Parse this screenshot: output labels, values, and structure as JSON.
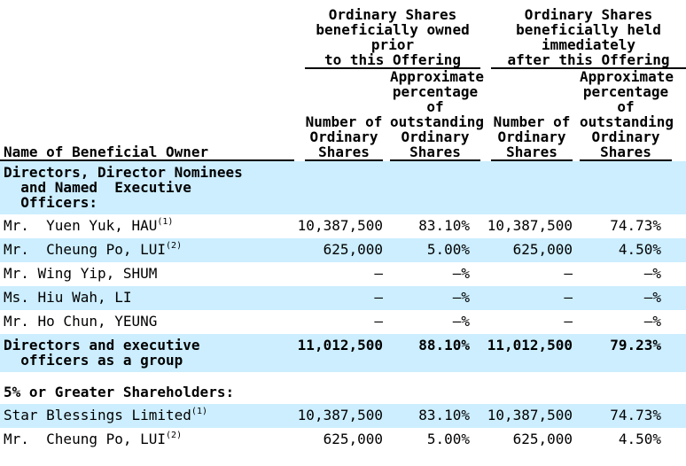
{
  "page": {
    "background_color": "#ffffff",
    "stripe_color": "#cceeff",
    "text_color": "#000000",
    "rule_color": "#000000"
  },
  "table": {
    "name_column_header": "Name of Beneficial Owner",
    "column_groups": [
      {
        "header": "Ordinary Shares\nbeneficially owned\nprior\nto this Offering"
      },
      {
        "header": "Ordinary Shares\nbeneficially held\nimmediately\nafter this Offering"
      }
    ],
    "column_headers": [
      "Number of\nOrdinary\nShares",
      "Approximate\npercentage\nof\noutstanding\nOrdinary\nShares",
      "Number of\nOrdinary\nShares",
      "Approximate\npercentage\nof\noutstanding\nOrdinary\nShares"
    ],
    "rows": [
      {
        "type": "section",
        "shaded": true,
        "gap_above": false,
        "name": "Directors, Director Nominees\n  and Named  Executive\n  Officers:",
        "footnote": "",
        "values": [
          "",
          "",
          "",
          ""
        ]
      },
      {
        "type": "data",
        "shaded": false,
        "gap_above": false,
        "name": "Mr.  Yuen Yuk, HAU",
        "footnote": "(1)",
        "values": [
          "10,387,500",
          "83.10%",
          "10,387,500",
          "74.73%"
        ]
      },
      {
        "type": "data",
        "shaded": true,
        "gap_above": false,
        "name": "Mr.  Cheung Po, LUI",
        "footnote": "(2)",
        "values": [
          "625,000",
          "5.00%",
          "625,000",
          "4.50%"
        ]
      },
      {
        "type": "data",
        "shaded": false,
        "gap_above": false,
        "name": "Mr. Wing Yip, SHUM",
        "footnote": "",
        "values": [
          "—",
          "—%",
          "—",
          "—%"
        ]
      },
      {
        "type": "data",
        "shaded": true,
        "gap_above": false,
        "name": "Ms. Hiu Wah, LI",
        "footnote": "",
        "values": [
          "—",
          "—%",
          "—",
          "—%"
        ]
      },
      {
        "type": "data",
        "shaded": false,
        "gap_above": false,
        "name": "Mr. Ho Chun, YEUNG",
        "footnote": "",
        "values": [
          "—",
          "—%",
          "—",
          "—%"
        ]
      },
      {
        "type": "section",
        "shaded": true,
        "gap_above": false,
        "name": "Directors and executive\n  officers as a group",
        "footnote": "",
        "values": [
          "11,012,500",
          "88.10%",
          "11,012,500",
          "79.23%"
        ]
      },
      {
        "type": "section",
        "shaded": false,
        "gap_above": true,
        "name": "5% or Greater Shareholders:",
        "footnote": "",
        "values": [
          "",
          "",
          "",
          ""
        ]
      },
      {
        "type": "data",
        "shaded": true,
        "gap_above": false,
        "name": "Star Blessings Limited",
        "footnote": "(1)",
        "values": [
          "10,387,500",
          "83.10%",
          "10,387,500",
          "74.73%"
        ]
      },
      {
        "type": "data",
        "shaded": false,
        "gap_above": false,
        "name": "Mr.  Cheung Po, LUI",
        "footnote": "(2)",
        "values": [
          "625,000",
          "5.00%",
          "625,000",
          "4.50%"
        ]
      }
    ]
  }
}
